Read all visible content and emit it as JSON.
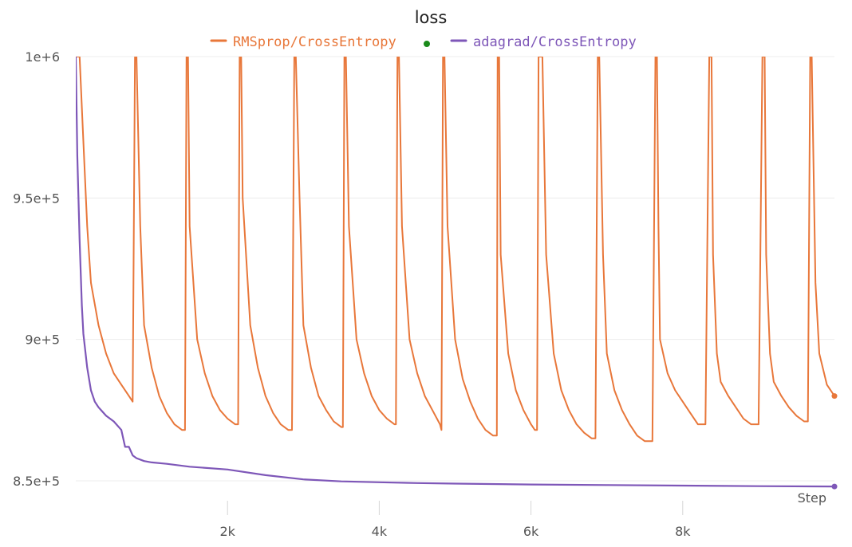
{
  "chart_data": {
    "type": "line",
    "title": "loss",
    "xlabel": "Step",
    "ylabel": "",
    "xlim": [
      0,
      10000
    ],
    "ylim": [
      840000,
      1000000
    ],
    "x_ticks": [
      2000,
      4000,
      6000,
      8000
    ],
    "x_tick_labels": [
      "2k",
      "4k",
      "6k",
      "8k"
    ],
    "y_ticks": [
      850000,
      900000,
      950000,
      1000000
    ],
    "y_tick_labels": [
      "8.5e+5",
      "9e+5",
      "9.5e+5",
      "1e+6"
    ],
    "grid": true,
    "legend_position": "top-center",
    "legend_separator_color": "#1a8a1a",
    "series": [
      {
        "name": "RMSprop/CrossEntropy",
        "color": "#e8773a",
        "last": [
          10000,
          880000
        ],
        "x": [
          0,
          50,
          100,
          150,
          200,
          300,
          400,
          500,
          600,
          700,
          750,
          780,
          800,
          850,
          900,
          1000,
          1100,
          1200,
          1300,
          1400,
          1440,
          1460,
          1480,
          1500,
          1600,
          1700,
          1800,
          1900,
          2000,
          2100,
          2140,
          2160,
          2180,
          2200,
          2300,
          2400,
          2500,
          2600,
          2700,
          2800,
          2850,
          2880,
          2900,
          2950,
          3000,
          3100,
          3200,
          3300,
          3400,
          3500,
          3520,
          3540,
          3560,
          3600,
          3700,
          3800,
          3900,
          4000,
          4100,
          4200,
          4220,
          4240,
          4260,
          4300,
          4400,
          4500,
          4600,
          4700,
          4800,
          4820,
          4840,
          4860,
          4900,
          5000,
          5100,
          5200,
          5300,
          5400,
          5500,
          5550,
          5560,
          5580,
          5600,
          5700,
          5800,
          5900,
          6000,
          6050,
          6080,
          6100,
          6150,
          6200,
          6300,
          6400,
          6500,
          6600,
          6700,
          6800,
          6850,
          6880,
          6900,
          6950,
          7000,
          7100,
          7200,
          7300,
          7400,
          7500,
          7600,
          7640,
          7660,
          7680,
          7700,
          7800,
          7900,
          8000,
          8100,
          8200,
          8300,
          8350,
          8380,
          8400,
          8450,
          8500,
          8600,
          8700,
          8800,
          8900,
          9000,
          9050,
          9080,
          9100,
          9150,
          9200,
          9300,
          9400,
          9500,
          9600,
          9650,
          9680,
          9700,
          9750,
          9800,
          9900,
          10000
        ],
        "y": [
          1000000,
          1000000,
          970000,
          940000,
          920000,
          905000,
          895000,
          888000,
          884000,
          880000,
          878000,
          1000000,
          1000000,
          940000,
          905000,
          890000,
          880000,
          874000,
          870000,
          868000,
          868000,
          1000000,
          1000000,
          940000,
          900000,
          888000,
          880000,
          875000,
          872000,
          870000,
          870000,
          1000000,
          1000000,
          950000,
          905000,
          890000,
          880000,
          874000,
          870000,
          868000,
          868000,
          1000000,
          1000000,
          950000,
          905000,
          890000,
          880000,
          875000,
          871000,
          869000,
          869000,
          1000000,
          1000000,
          940000,
          900000,
          888000,
          880000,
          875000,
          872000,
          870000,
          870000,
          1000000,
          1000000,
          940000,
          900000,
          888000,
          880000,
          875000,
          870000,
          868000,
          1000000,
          1000000,
          940000,
          900000,
          886000,
          878000,
          872000,
          868000,
          866000,
          866000,
          1000000,
          1000000,
          930000,
          895000,
          882000,
          875000,
          870000,
          868000,
          868000,
          1000000,
          1000000,
          930000,
          895000,
          882000,
          875000,
          870000,
          867000,
          865000,
          865000,
          1000000,
          1000000,
          930000,
          895000,
          882000,
          875000,
          870000,
          866000,
          864000,
          864000,
          1000000,
          1000000,
          940000,
          900000,
          888000,
          882000,
          878000,
          874000,
          870000,
          870000,
          1000000,
          1000000,
          930000,
          895000,
          885000,
          880000,
          876000,
          872000,
          870000,
          870000,
          1000000,
          1000000,
          930000,
          895000,
          885000,
          880000,
          876000,
          873000,
          871000,
          871000,
          1000000,
          1000000,
          920000,
          895000,
          884000,
          880000
        ]
      },
      {
        "name": "adagrad/CrossEntropy",
        "color": "#7e57b8",
        "last": [
          10000,
          848000
        ],
        "x": [
          0,
          20,
          50,
          80,
          100,
          150,
          200,
          250,
          300,
          400,
          500,
          600,
          650,
          700,
          750,
          800,
          900,
          1000,
          1200,
          1500,
          2000,
          2500,
          3000,
          3500,
          4000,
          4500,
          5000,
          6000,
          7000,
          8000,
          9000,
          10000
        ],
        "y": [
          1000000,
          965000,
          935000,
          912000,
          902000,
          890000,
          882000,
          878000,
          876000,
          873000,
          871000,
          868000,
          862000,
          862000,
          859000,
          858000,
          857000,
          856500,
          856000,
          855000,
          854000,
          852000,
          850500,
          849800,
          849500,
          849200,
          849000,
          848700,
          848500,
          848300,
          848100,
          848000
        ]
      }
    ]
  }
}
